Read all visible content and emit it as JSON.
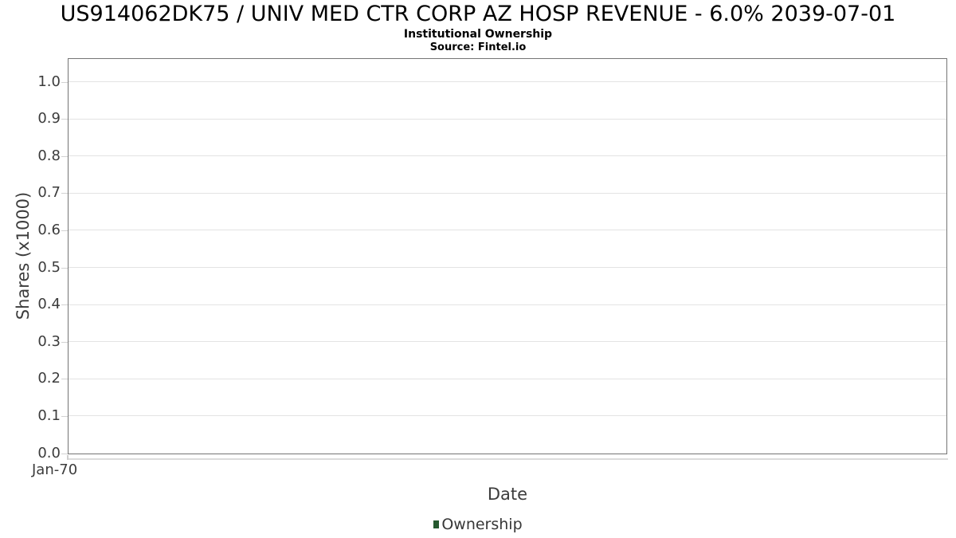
{
  "header": {
    "title": "US914062DK75 / UNIV MED CTR CORP AZ HOSP REVENUE - 6.0% 2039-07-01",
    "subtitle": "Institutional Ownership",
    "source": "Source: Fintel.io"
  },
  "chart_data": {
    "type": "bar",
    "title": "US914062DK75 / UNIV MED CTR CORP AZ HOSP REVENUE - 6.0% 2039-07-01",
    "subtitle": "Institutional Ownership",
    "source": "Source: Fintel.io",
    "xlabel": "Date",
    "ylabel": "Shares (x1000)",
    "x_ticks": [
      "Jan-70"
    ],
    "y_tick_labels": [
      "0.0",
      "0.1",
      "0.2",
      "0.3",
      "0.4",
      "0.5",
      "0.6",
      "0.7",
      "0.8",
      "0.9",
      "1.0"
    ],
    "ylim": [
      0,
      1.06
    ],
    "grid": true,
    "legend_position": "bottom",
    "series": [
      {
        "name": "Ownership",
        "color": "#26592f",
        "x": [],
        "values": []
      }
    ]
  },
  "legend": {
    "items": [
      {
        "label": "Ownership",
        "color": "#26592f"
      }
    ]
  },
  "colors": {
    "background": "#ffffff",
    "plot_border": "#757575",
    "gridline": "#e3e3e3",
    "axis_text": "#3c3c3c",
    "title_text": "#000000",
    "series_green": "#26592f"
  }
}
